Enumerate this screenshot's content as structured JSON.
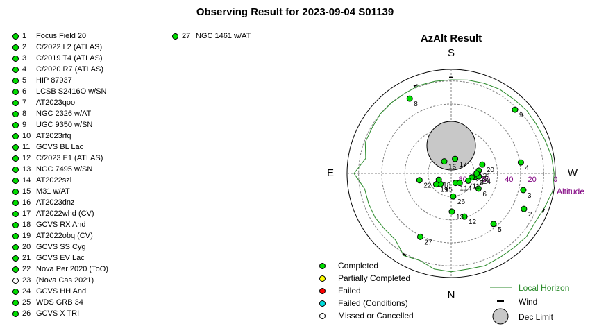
{
  "page_title": "Observing Result for 2023-09-04 S01139",
  "chart_title": "AzAlt Result",
  "compass": {
    "north": "N",
    "south": "S",
    "east": "E",
    "west": "W"
  },
  "altitude_label": "Altitude",
  "altitude_ticks": [
    "80",
    "60",
    "40",
    "20",
    "0"
  ],
  "targets": [
    {
      "num": "1",
      "name": "Focus Field 20",
      "status": "completed"
    },
    {
      "num": "2",
      "name": "C/2022 L2 (ATLAS)",
      "status": "completed"
    },
    {
      "num": "3",
      "name": "C/2019 T4 (ATLAS)",
      "status": "completed"
    },
    {
      "num": "4",
      "name": "C/2020 R7 (ATLAS)",
      "status": "completed"
    },
    {
      "num": "5",
      "name": "HIP 87937",
      "status": "completed"
    },
    {
      "num": "6",
      "name": "LCSB S2416O w/SN",
      "status": "completed"
    },
    {
      "num": "7",
      "name": "AT2023qoo",
      "status": "completed"
    },
    {
      "num": "8",
      "name": "NGC 2326 w/AT",
      "status": "completed"
    },
    {
      "num": "9",
      "name": "UGC 9350 w/SN",
      "status": "completed"
    },
    {
      "num": "10",
      "name": "AT2023rfq",
      "status": "completed"
    },
    {
      "num": "11",
      "name": "GCVS BL Lac",
      "status": "completed"
    },
    {
      "num": "12",
      "name": "C/2023 E1 (ATLAS)",
      "status": "completed"
    },
    {
      "num": "13",
      "name": "NGC 7495 w/SN",
      "status": "completed"
    },
    {
      "num": "14",
      "name": "AT2022szi",
      "status": "completed"
    },
    {
      "num": "15",
      "name": "M31 w/AT",
      "status": "completed"
    },
    {
      "num": "16",
      "name": "AT2023dnz",
      "status": "completed"
    },
    {
      "num": "17",
      "name": "AT2022whd (CV)",
      "status": "completed"
    },
    {
      "num": "18",
      "name": "GCVS RX And",
      "status": "completed"
    },
    {
      "num": "19",
      "name": "AT2022obq (CV)",
      "status": "completed"
    },
    {
      "num": "20",
      "name": "GCVS SS Cyg",
      "status": "completed"
    },
    {
      "num": "21",
      "name": "GCVS EV Lac",
      "status": "completed"
    },
    {
      "num": "22",
      "name": "Nova Per 2020 (ToO)",
      "status": "completed"
    },
    {
      "num": "23",
      "name": " (Nova Cas 2021)",
      "status": "missed"
    },
    {
      "num": "24",
      "name": "GCVS HH And",
      "status": "completed"
    },
    {
      "num": "25",
      "name": "WDS GRB 34",
      "status": "completed"
    },
    {
      "num": "26",
      "name": "GCVS X TRI",
      "status": "completed"
    },
    {
      "num": "27",
      "name": "NGC 1461 w/AT",
      "status": "completed"
    }
  ],
  "chart_data": {
    "type": "scatter",
    "title": "AzAlt Result",
    "projection": "polar-azimuth-altitude",
    "r_label": "Altitude",
    "r_range": [
      90,
      0
    ],
    "r_ticks": [
      80,
      60,
      40,
      20,
      0
    ],
    "grid": true,
    "points": [
      {
        "label": "1",
        "az": 205,
        "alt": 81
      },
      {
        "label": "2",
        "az": 244,
        "alt": 20
      },
      {
        "label": "3",
        "az": 257,
        "alt": 26
      },
      {
        "label": "4",
        "az": 279,
        "alt": 29
      },
      {
        "label": "5",
        "az": 220,
        "alt": 33
      },
      {
        "label": "6",
        "az": 241,
        "alt": 63
      },
      {
        "label": "7",
        "az": 262,
        "alt": 69
      },
      {
        "label": "8",
        "az": 29,
        "alt": 16
      },
      {
        "label": "9",
        "az": 315,
        "alt": 12
      },
      {
        "label": "10",
        "az": 259,
        "alt": 72
      },
      {
        "label": "11",
        "az": 247,
        "alt": 74
      },
      {
        "label": "12",
        "az": 197,
        "alt": 51
      },
      {
        "label": "13",
        "az": 181,
        "alt": 57
      },
      {
        "label": "14",
        "az": 222,
        "alt": 79
      },
      {
        "label": "15",
        "az": 135,
        "alt": 77
      },
      {
        "label": "16",
        "az": 30,
        "alt": 78
      },
      {
        "label": "17",
        "az": 345,
        "alt": 77
      },
      {
        "label": "18",
        "az": 117,
        "alt": 78
      },
      {
        "label": "19",
        "az": 126,
        "alt": 74
      },
      {
        "label": "20",
        "az": 286,
        "alt": 62
      },
      {
        "label": "21",
        "az": 276,
        "alt": 66
      },
      {
        "label": "22",
        "az": 102,
        "alt": 62
      },
      {
        "label": "24",
        "az": 264,
        "alt": 66
      },
      {
        "label": "25",
        "az": 270,
        "alt": 68
      },
      {
        "label": "26",
        "az": 185,
        "alt": 70
      },
      {
        "label": "27",
        "az": 154,
        "alt": 29
      }
    ],
    "dec_limit": {
      "az": 0,
      "alt": 66,
      "radius_alt_deg": 21
    },
    "wind_markers": [
      {
        "az": 150,
        "alt": 9
      },
      {
        "az": 248,
        "alt": 4
      },
      {
        "az": 0,
        "alt": 7
      },
      {
        "az": 22,
        "alt": 8
      }
    ],
    "local_horizon": [
      {
        "az": 0,
        "alt": 9
      },
      {
        "az": 10,
        "alt": 9
      },
      {
        "az": 20,
        "alt": 9
      },
      {
        "az": 30,
        "alt": 10
      },
      {
        "az": 40,
        "alt": 10
      },
      {
        "az": 50,
        "alt": 10
      },
      {
        "az": 60,
        "alt": 11
      },
      {
        "az": 70,
        "alt": 11
      },
      {
        "az": 80,
        "alt": 15
      },
      {
        "az": 90,
        "alt": 6
      },
      {
        "az": 100,
        "alt": 14
      },
      {
        "az": 110,
        "alt": 14
      },
      {
        "az": 120,
        "alt": 14
      },
      {
        "az": 130,
        "alt": 15
      },
      {
        "az": 140,
        "alt": 15
      },
      {
        "az": 150,
        "alt": 8
      },
      {
        "az": 160,
        "alt": 10
      },
      {
        "az": 170,
        "alt": 6
      },
      {
        "az": 180,
        "alt": 5
      },
      {
        "az": 190,
        "alt": 6
      },
      {
        "az": 200,
        "alt": 5
      },
      {
        "az": 210,
        "alt": 6
      },
      {
        "az": 220,
        "alt": 6
      },
      {
        "az": 230,
        "alt": 5
      },
      {
        "az": 240,
        "alt": 6
      },
      {
        "az": 250,
        "alt": 4
      },
      {
        "az": 260,
        "alt": 1
      },
      {
        "az": 270,
        "alt": 1
      },
      {
        "az": 280,
        "alt": 2
      },
      {
        "az": 290,
        "alt": 4
      },
      {
        "az": 300,
        "alt": 5
      },
      {
        "az": 310,
        "alt": 5
      },
      {
        "az": 320,
        "alt": 6
      },
      {
        "az": 330,
        "alt": 6
      },
      {
        "az": 340,
        "alt": 7
      },
      {
        "az": 350,
        "alt": 8
      },
      {
        "az": 360,
        "alt": 9
      }
    ]
  },
  "legend": {
    "status": [
      {
        "label": "Completed",
        "color": "#00dd00"
      },
      {
        "label": "Partially Completed",
        "color": "#ffff00"
      },
      {
        "label": "Failed",
        "color": "#ff0000"
      },
      {
        "label": "Failed (Conditions)",
        "color": "#00dddd"
      },
      {
        "label": "Missed or Cancelled",
        "color": "#ffffff"
      }
    ],
    "local_horizon_label": "Local Horizon",
    "wind_label": "Wind",
    "dec_limit_label": "Dec Limit"
  },
  "colors": {
    "completed": "#00dd00",
    "missed": "#ffffff",
    "horizon": "#2a8a2a",
    "altitude_text": "#800080",
    "dec_limit_fill": "#c8c8c8",
    "grid": "#808080"
  }
}
